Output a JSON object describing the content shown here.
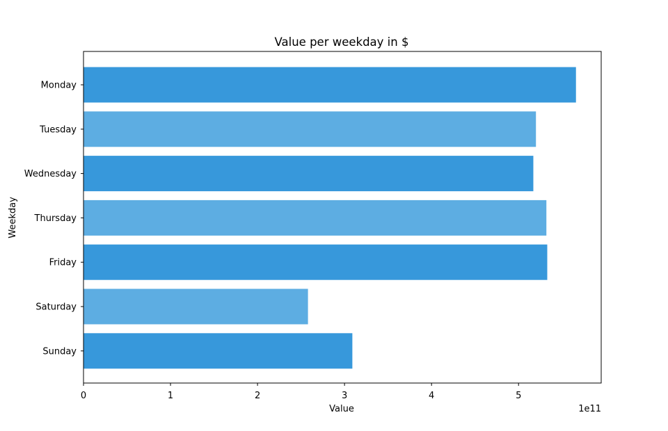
{
  "chart_data": {
    "type": "bar",
    "orientation": "horizontal",
    "title": "Value per weekday in $",
    "xlabel": "Value",
    "ylabel": "Weekday",
    "x_offset_label": "1e11",
    "x_scale": 100000000000,
    "xlim": [
      0,
      595000000000
    ],
    "x_ticks": [
      0,
      100000000000,
      200000000000,
      300000000000,
      400000000000,
      500000000000
    ],
    "x_tick_labels": [
      "0",
      "1",
      "2",
      "3",
      "4",
      "5"
    ],
    "categories": [
      "Monday",
      "Tuesday",
      "Wednesday",
      "Thursday",
      "Friday",
      "Saturday",
      "Sunday"
    ],
    "values": [
      566000000000,
      520000000000,
      517000000000,
      532000000000,
      533000000000,
      258000000000,
      309000000000
    ],
    "colors": [
      "#3798db",
      "#5dade2",
      "#3798db",
      "#5dade2",
      "#3798db",
      "#5dade2",
      "#3798db"
    ],
    "grid": false,
    "legend": "none"
  }
}
